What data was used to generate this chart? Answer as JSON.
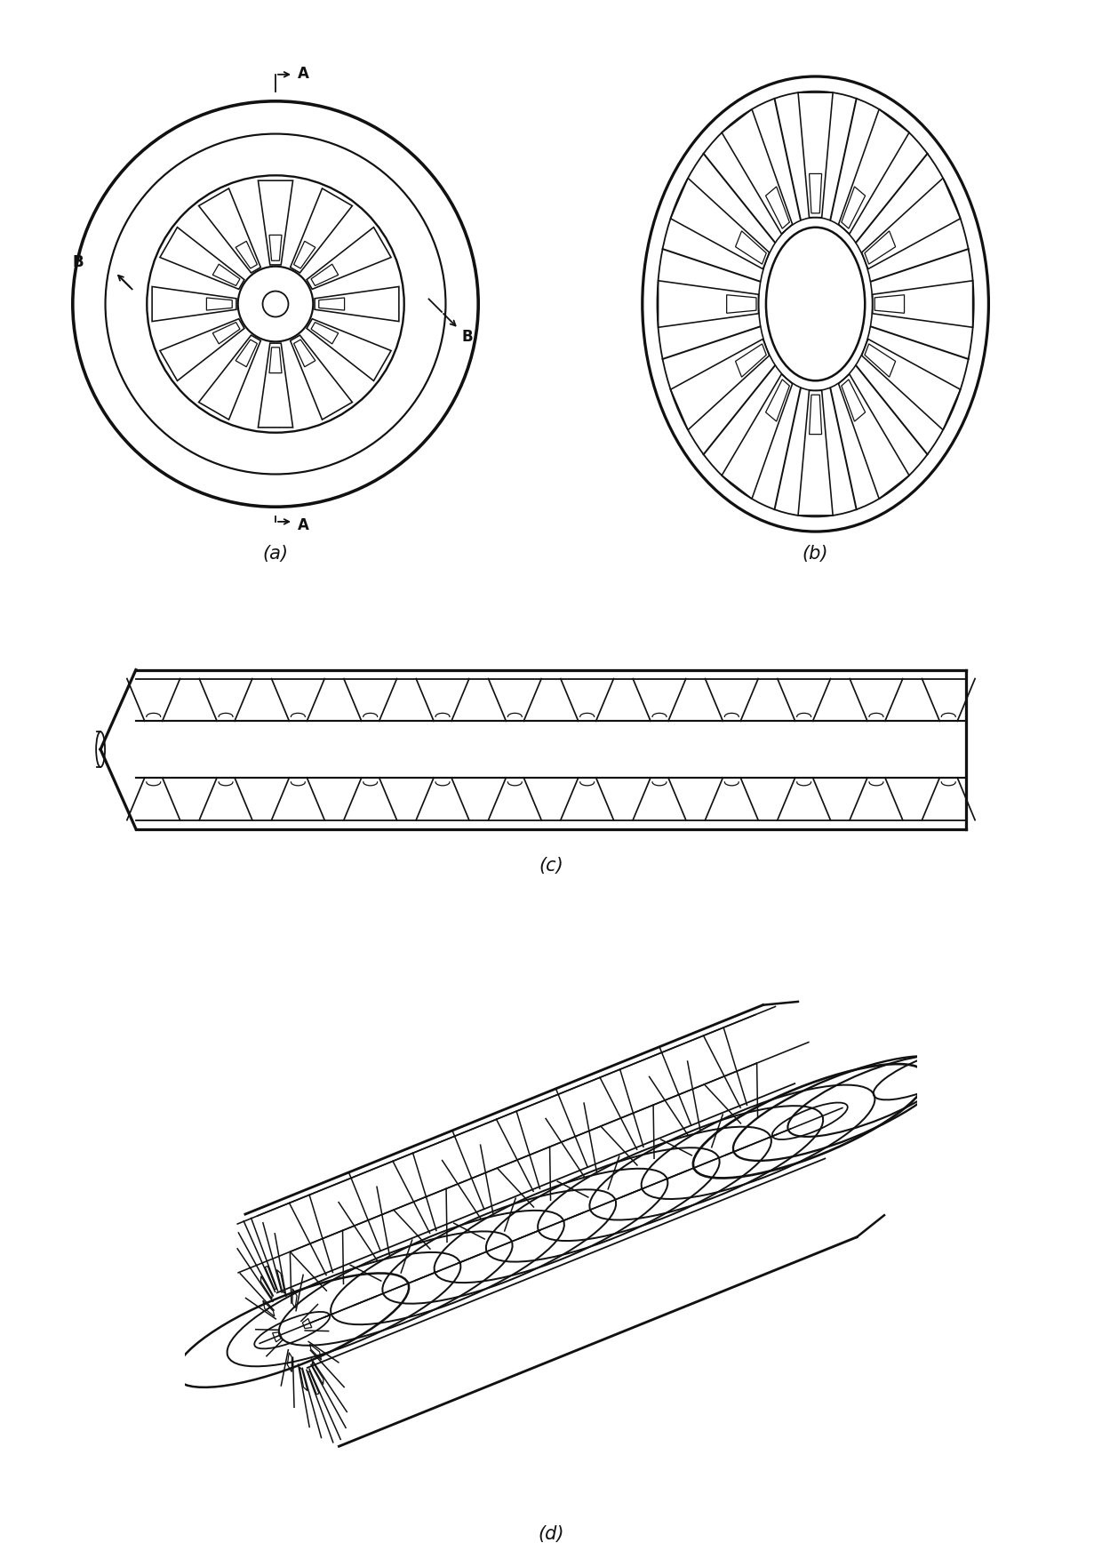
{
  "bg_color": "#ffffff",
  "line_color": "#111111",
  "lw": 1.3,
  "label_fontsize": 15,
  "annotation_fontsize": 11,
  "subfig_labels": [
    "(a)",
    "(b)",
    "(c)",
    "(d)"
  ]
}
